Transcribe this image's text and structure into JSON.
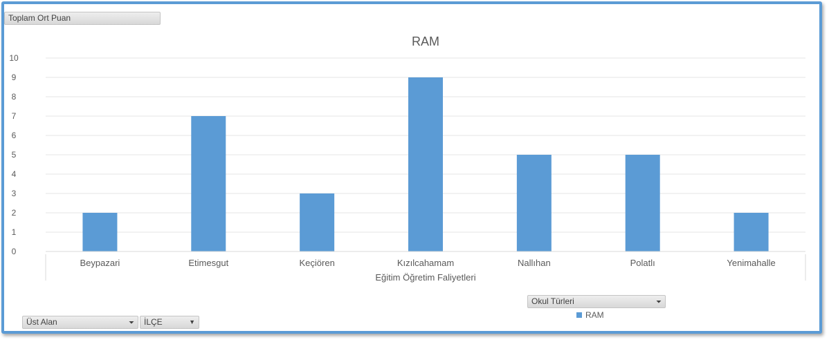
{
  "chart_data": {
    "type": "bar",
    "title": "RAM",
    "xlabel": "Eğitim Öğretim Faliyetleri",
    "ylabel": "",
    "categories": [
      "Beypazari",
      "Etimesgut",
      "Keçiören",
      "Kızılcahamam",
      "Nallıhan",
      "Polatlı",
      "Yenimahalle"
    ],
    "series": [
      {
        "name": "RAM",
        "values": [
          2,
          7,
          3,
          9,
          5,
          5,
          2
        ]
      }
    ],
    "ylim": [
      0,
      10
    ],
    "yticks": [
      "0",
      "1",
      "2",
      "3",
      "4",
      "5",
      "6",
      "7",
      "8",
      "9",
      "10"
    ],
    "grid": true,
    "legend_position": "bottom-right",
    "bar_color": "#5b9bd5"
  },
  "pivot": {
    "value_field": "Toplam Ort Puan",
    "filter_field_label": "Okul Türleri",
    "axis_fields": [
      "Üst Alan",
      "İLÇE"
    ]
  },
  "colors": {
    "frame": "#5b9bd5",
    "grid": "#e4e4e4",
    "text": "#595959"
  }
}
